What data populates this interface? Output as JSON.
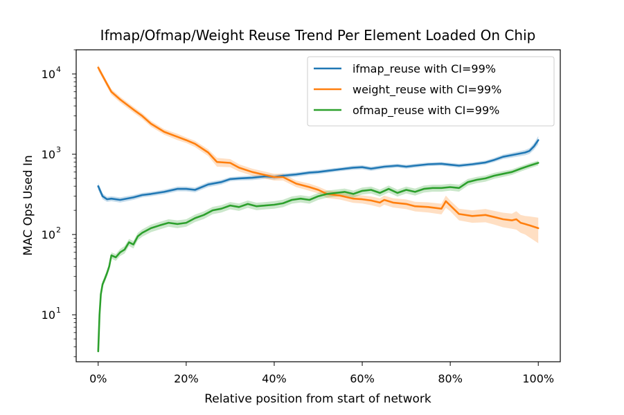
{
  "chart_data": {
    "type": "line",
    "title": "Ifmap/Ofmap/Weight Reuse Trend Per Element Loaded On Chip",
    "xlabel": "Relative position from start of network",
    "ylabel": "MAC Ops Used In",
    "xlim": [
      -0.05,
      1.05
    ],
    "ylim": [
      2.6,
      20000
    ],
    "yscale": "log",
    "x_ticks": [
      0,
      0.2,
      0.4,
      0.6,
      0.8,
      1.0
    ],
    "x_tick_labels": [
      "0%",
      "20%",
      "40%",
      "60%",
      "80%",
      "100%"
    ],
    "y_ticks": [
      10,
      100,
      1000,
      10000
    ],
    "y_tick_base": "10",
    "y_tick_exponents": [
      "1",
      "2",
      "3",
      "4"
    ],
    "grid": false,
    "legend_position": "upper-right",
    "series": [
      {
        "name": "ifmap_reuse with CI=99%",
        "color": "#1f77b4",
        "x": [
          0,
          0.01,
          0.02,
          0.03,
          0.05,
          0.08,
          0.1,
          0.12,
          0.15,
          0.18,
          0.2,
          0.22,
          0.25,
          0.28,
          0.3,
          0.32,
          0.35,
          0.38,
          0.4,
          0.42,
          0.45,
          0.48,
          0.5,
          0.52,
          0.55,
          0.58,
          0.6,
          0.62,
          0.65,
          0.68,
          0.7,
          0.72,
          0.75,
          0.78,
          0.8,
          0.82,
          0.85,
          0.88,
          0.9,
          0.92,
          0.95,
          0.97,
          0.98,
          0.99,
          1.0
        ],
        "y": [
          400,
          300,
          275,
          280,
          270,
          290,
          310,
          320,
          340,
          370,
          370,
          360,
          420,
          450,
          490,
          500,
          510,
          530,
          520,
          540,
          560,
          590,
          600,
          620,
          650,
          680,
          690,
          660,
          700,
          720,
          700,
          720,
          750,
          760,
          740,
          720,
          750,
          790,
          850,
          930,
          1000,
          1050,
          1100,
          1250,
          1500
        ],
        "ci_low": [
          360,
          275,
          255,
          260,
          250,
          270,
          290,
          300,
          318,
          345,
          345,
          335,
          390,
          420,
          460,
          470,
          475,
          495,
          485,
          505,
          525,
          555,
          565,
          585,
          615,
          640,
          650,
          620,
          660,
          680,
          660,
          680,
          710,
          720,
          700,
          680,
          710,
          745,
          800,
          870,
          930,
          970,
          1010,
          1130,
          1330
        ],
        "ci_high": [
          440,
          325,
          295,
          300,
          290,
          310,
          330,
          340,
          362,
          395,
          395,
          385,
          450,
          480,
          520,
          530,
          545,
          565,
          555,
          575,
          595,
          625,
          635,
          655,
          685,
          720,
          730,
          700,
          740,
          760,
          740,
          760,
          790,
          800,
          780,
          760,
          790,
          835,
          900,
          990,
          1070,
          1130,
          1190,
          1370,
          1680
        ]
      },
      {
        "name": "weight_reuse with CI=99%",
        "color": "#ff7f0e",
        "x": [
          0,
          0.01,
          0.02,
          0.03,
          0.05,
          0.08,
          0.1,
          0.12,
          0.15,
          0.18,
          0.2,
          0.22,
          0.25,
          0.27,
          0.3,
          0.32,
          0.35,
          0.38,
          0.4,
          0.42,
          0.45,
          0.48,
          0.5,
          0.52,
          0.55,
          0.58,
          0.6,
          0.62,
          0.64,
          0.65,
          0.67,
          0.7,
          0.72,
          0.75,
          0.78,
          0.79,
          0.8,
          0.82,
          0.85,
          0.88,
          0.9,
          0.92,
          0.94,
          0.95,
          0.96,
          0.97,
          0.98,
          1.0
        ],
        "y": [
          12000,
          9500,
          7500,
          6000,
          4800,
          3600,
          3000,
          2400,
          1900,
          1650,
          1500,
          1350,
          1050,
          800,
          780,
          680,
          600,
          550,
          520,
          520,
          430,
          390,
          360,
          320,
          305,
          280,
          275,
          265,
          250,
          270,
          250,
          240,
          225,
          220,
          210,
          260,
          230,
          180,
          170,
          175,
          165,
          155,
          150,
          155,
          140,
          135,
          130,
          120
        ],
        "ci_low": [
          11000,
          8800,
          6900,
          5500,
          4400,
          3300,
          2750,
          2200,
          1750,
          1500,
          1380,
          1230,
          950,
          700,
          690,
          610,
          540,
          495,
          470,
          470,
          390,
          350,
          325,
          285,
          272,
          248,
          243,
          232,
          218,
          235,
          217,
          207,
          194,
          188,
          178,
          215,
          195,
          150,
          140,
          142,
          133,
          123,
          118,
          115,
          105,
          100,
          92,
          78
        ],
        "ci_high": [
          13000,
          10200,
          8100,
          6500,
          5200,
          3900,
          3250,
          2600,
          2050,
          1800,
          1620,
          1470,
          1150,
          900,
          870,
          750,
          660,
          605,
          570,
          570,
          470,
          430,
          395,
          355,
          338,
          312,
          307,
          298,
          282,
          305,
          283,
          273,
          256,
          252,
          242,
          305,
          265,
          210,
          200,
          208,
          197,
          187,
          182,
          195,
          175,
          170,
          168,
          162
        ]
      },
      {
        "name": "ofmap_reuse with CI=99%",
        "color": "#2ca02c",
        "x": [
          0,
          0.003,
          0.006,
          0.01,
          0.015,
          0.02,
          0.025,
          0.03,
          0.04,
          0.05,
          0.06,
          0.07,
          0.08,
          0.09,
          0.1,
          0.12,
          0.14,
          0.16,
          0.18,
          0.2,
          0.22,
          0.24,
          0.26,
          0.28,
          0.3,
          0.32,
          0.34,
          0.36,
          0.38,
          0.4,
          0.42,
          0.44,
          0.46,
          0.48,
          0.5,
          0.52,
          0.54,
          0.56,
          0.58,
          0.6,
          0.62,
          0.64,
          0.66,
          0.68,
          0.7,
          0.72,
          0.74,
          0.76,
          0.78,
          0.8,
          0.82,
          0.84,
          0.86,
          0.88,
          0.9,
          0.92,
          0.94,
          0.96,
          0.98,
          1.0
        ],
        "y": [
          3.5,
          10,
          18,
          24,
          28,
          33,
          40,
          55,
          52,
          60,
          65,
          80,
          75,
          95,
          105,
          120,
          130,
          140,
          135,
          140,
          160,
          175,
          200,
          210,
          230,
          220,
          240,
          225,
          230,
          235,
          245,
          270,
          280,
          270,
          300,
          320,
          330,
          340,
          320,
          350,
          360,
          330,
          370,
          330,
          360,
          340,
          370,
          380,
          380,
          390,
          380,
          450,
          480,
          500,
          540,
          570,
          600,
          660,
          720,
          780
        ],
        "ci_low": [
          3.3,
          9.3,
          16.5,
          22,
          25.5,
          30,
          36,
          50,
          47,
          54,
          58,
          72,
          67,
          85,
          94,
          107,
          116,
          125,
          120,
          125,
          143,
          156,
          179,
          188,
          206,
          197,
          215,
          201,
          206,
          210,
          219,
          242,
          251,
          242,
          270,
          288,
          297,
          306,
          288,
          315,
          324,
          297,
          333,
          297,
          324,
          306,
          333,
          342,
          342,
          352,
          342,
          408,
          437,
          456,
          494,
          523,
          552,
          609,
          666,
          725
        ],
        "ci_high": [
          3.7,
          10.7,
          19.5,
          26,
          30.5,
          36,
          44,
          60,
          57,
          66,
          72,
          88,
          83,
          105,
          116,
          133,
          144,
          155,
          150,
          155,
          177,
          194,
          221,
          232,
          254,
          243,
          265,
          249,
          254,
          260,
          271,
          298,
          309,
          298,
          330,
          352,
          363,
          374,
          352,
          385,
          396,
          363,
          407,
          363,
          396,
          374,
          407,
          418,
          418,
          428,
          418,
          492,
          523,
          544,
          586,
          617,
          648,
          711,
          774,
          835
        ]
      }
    ]
  }
}
